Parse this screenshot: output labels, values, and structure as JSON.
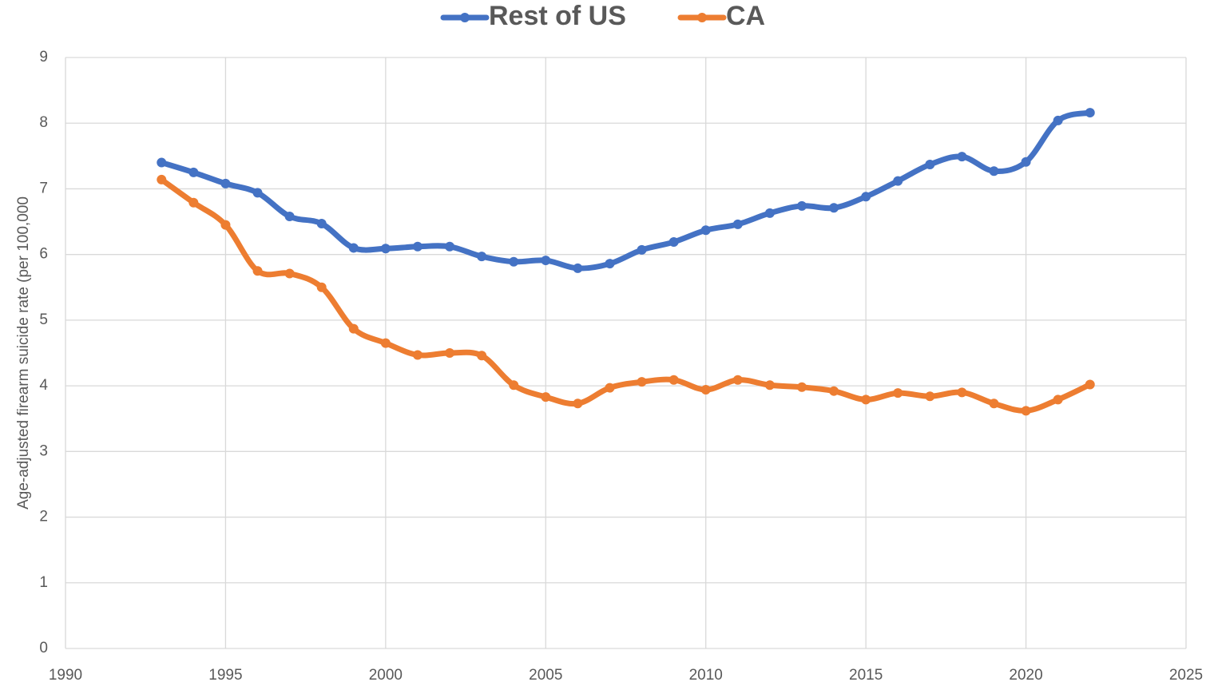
{
  "chart_data": {
    "type": "line",
    "y_label": "Age-adjusted firearm suicide rate (per 100,000",
    "x": [
      1993,
      1994,
      1995,
      1996,
      1997,
      1998,
      1999,
      2000,
      2001,
      2002,
      2003,
      2004,
      2005,
      2006,
      2007,
      2008,
      2009,
      2010,
      2011,
      2012,
      2013,
      2014,
      2015,
      2016,
      2017,
      2018,
      2019,
      2020,
      2021,
      2022
    ],
    "series": [
      {
        "name": "Rest of US",
        "color": "#4472c4",
        "values": [
          7.4,
          7.25,
          7.08,
          6.94,
          6.58,
          6.47,
          6.1,
          6.09,
          6.12,
          6.12,
          5.97,
          5.89,
          5.91,
          5.79,
          5.86,
          6.07,
          6.19,
          6.37,
          6.46,
          6.63,
          6.74,
          6.71,
          6.88,
          7.12,
          7.37,
          7.49,
          7.27,
          7.41,
          8.04,
          8.16
        ]
      },
      {
        "name": "CA",
        "color": "#ed7d31",
        "values": [
          7.14,
          6.79,
          6.45,
          5.75,
          5.71,
          5.5,
          4.87,
          4.65,
          4.47,
          4.5,
          4.46,
          4.01,
          3.83,
          3.73,
          3.97,
          4.06,
          4.09,
          3.94,
          4.09,
          4.01,
          3.98,
          3.92,
          3.79,
          3.89,
          3.84,
          3.9,
          3.73,
          3.62,
          3.79,
          4.02
        ]
      }
    ],
    "xlim": [
      1990,
      2025
    ],
    "xticks": [
      1990,
      1995,
      2000,
      2005,
      2010,
      2015,
      2020,
      2025
    ],
    "ylim": [
      0,
      9
    ],
    "yticks": [
      0,
      1,
      2,
      3,
      4,
      5,
      6,
      7,
      8,
      9
    ],
    "grid": true,
    "legend": "top"
  }
}
